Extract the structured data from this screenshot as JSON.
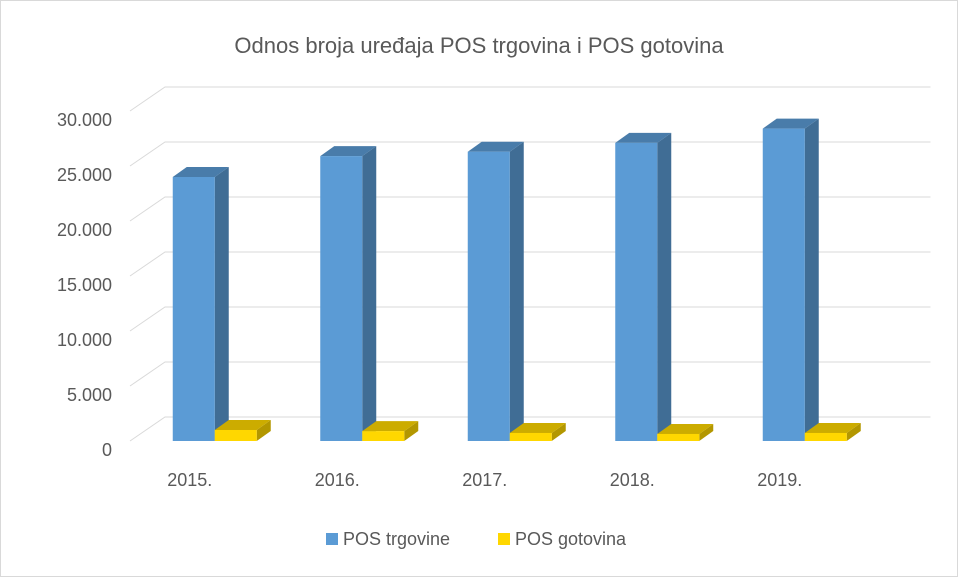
{
  "chart_data": {
    "type": "bar3d",
    "title": "Odnos broja uređaja POS trgovina i POS gotovina",
    "categories": [
      "2015.",
      "2016.",
      "2017.",
      "2018.",
      "2019."
    ],
    "series": [
      {
        "name": "POS trgovine",
        "color": "#5b9bd5",
        "values": [
          24000,
          25900,
          26300,
          27100,
          28400
        ]
      },
      {
        "name": "POS gotovina",
        "color": "#ffd700",
        "values": [
          1000,
          900,
          730,
          640,
          730
        ]
      }
    ],
    "ylim": [
      0,
      30000
    ],
    "yticks": [
      0,
      {
        "value": 5000,
        "label": "5.000"
      },
      {
        "value": 10000,
        "label": "10.000"
      },
      {
        "value": 15000,
        "label": "15.000"
      },
      {
        "value": 20000,
        "label": "20.000"
      },
      {
        "value": 25000,
        "label": "25.000"
      },
      {
        "value": 30000,
        "label": "30.000"
      }
    ],
    "grid": true,
    "legend": "bottom"
  }
}
